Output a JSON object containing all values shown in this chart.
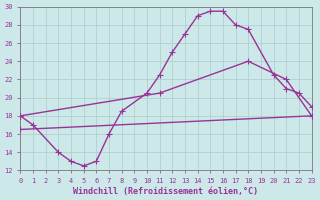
{
  "xlabel": "Windchill (Refroidissement éolien,°C)",
  "background_color": "#cce8e8",
  "grid_color": "#b0d0d0",
  "line_color": "#993399",
  "xlim": [
    0,
    23
  ],
  "ylim": [
    12,
    30
  ],
  "xticks": [
    0,
    1,
    2,
    3,
    4,
    5,
    6,
    7,
    8,
    9,
    10,
    11,
    12,
    13,
    14,
    15,
    16,
    17,
    18,
    19,
    20,
    21,
    22,
    23
  ],
  "yticks": [
    12,
    14,
    16,
    18,
    20,
    22,
    24,
    26,
    28,
    30
  ],
  "series1_x": [
    0,
    1,
    3,
    4,
    5,
    6,
    7,
    8,
    10,
    11,
    12,
    13,
    14,
    15,
    16,
    17,
    18,
    20,
    21,
    22,
    23
  ],
  "series1_y": [
    18,
    17,
    14,
    13,
    12.5,
    13.0,
    16.0,
    18.5,
    20.5,
    22.5,
    25.0,
    27.0,
    29.0,
    29.5,
    29.5,
    28.0,
    27.5,
    22.5,
    21.0,
    20.5,
    19.0
  ],
  "series2_x": [
    0,
    11,
    18,
    21,
    23
  ],
  "series2_y": [
    18,
    20.5,
    24.0,
    22.0,
    18.0
  ],
  "series3_x": [
    0,
    23
  ],
  "series3_y": [
    16.5,
    18.0
  ],
  "marker": "+",
  "markersize": 4,
  "linewidth": 1.0,
  "tick_fontsize": 5,
  "xlabel_fontsize": 6
}
